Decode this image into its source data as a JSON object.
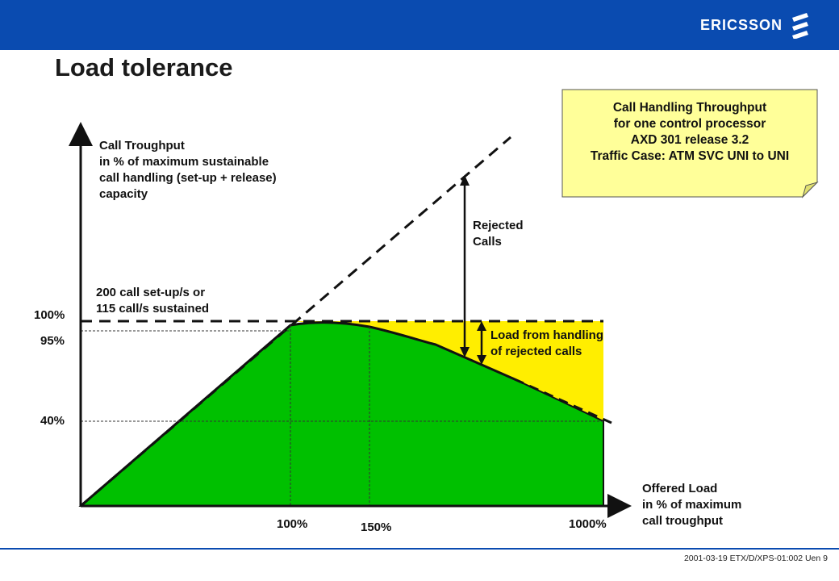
{
  "header": {
    "brand": "ERICSSON",
    "bar_color": "#0a4bb0"
  },
  "title": "Load tolerance",
  "note": {
    "lines": [
      "Call Handling Throughput",
      "for one control processor",
      "AXD 301 release 3.2",
      "Traffic Case: ATM SVC UNI to UNI"
    ],
    "fill": "#ffff99"
  },
  "chart_data": {
    "type": "area",
    "xlabel": [
      "Offered Load",
      "in % of maximum",
      "call troughput"
    ],
    "ylabel": [
      "Call Troughput",
      "in % of maximum sustainable",
      "call handling (set-up + release)",
      "capacity"
    ],
    "x_ticks": [
      "100%",
      "150%",
      "1000%"
    ],
    "y_ticks": [
      "100%",
      "95%",
      "40%"
    ],
    "series": [
      {
        "name": "",
        "color": "#00c000",
        "points": [
          {
            "x": 0,
            "y": 0
          },
          {
            "x": 100,
            "y": 100
          },
          {
            "x": 150,
            "y": 95
          },
          {
            "x": 1000,
            "y": 40
          }
        ]
      }
    ],
    "rejected_region_color": "#ffee00",
    "annotations": {
      "capacity": [
        "200 call set-up/s or",
        "115 call/s sustained"
      ],
      "rejected": [
        "Rejected",
        "Calls"
      ],
      "handling": [
        "Load from handling",
        "of rejected calls"
      ]
    }
  },
  "footer": {
    "text": "2001-03-19 ETX/D/XPS-01:002 Uen   9"
  }
}
